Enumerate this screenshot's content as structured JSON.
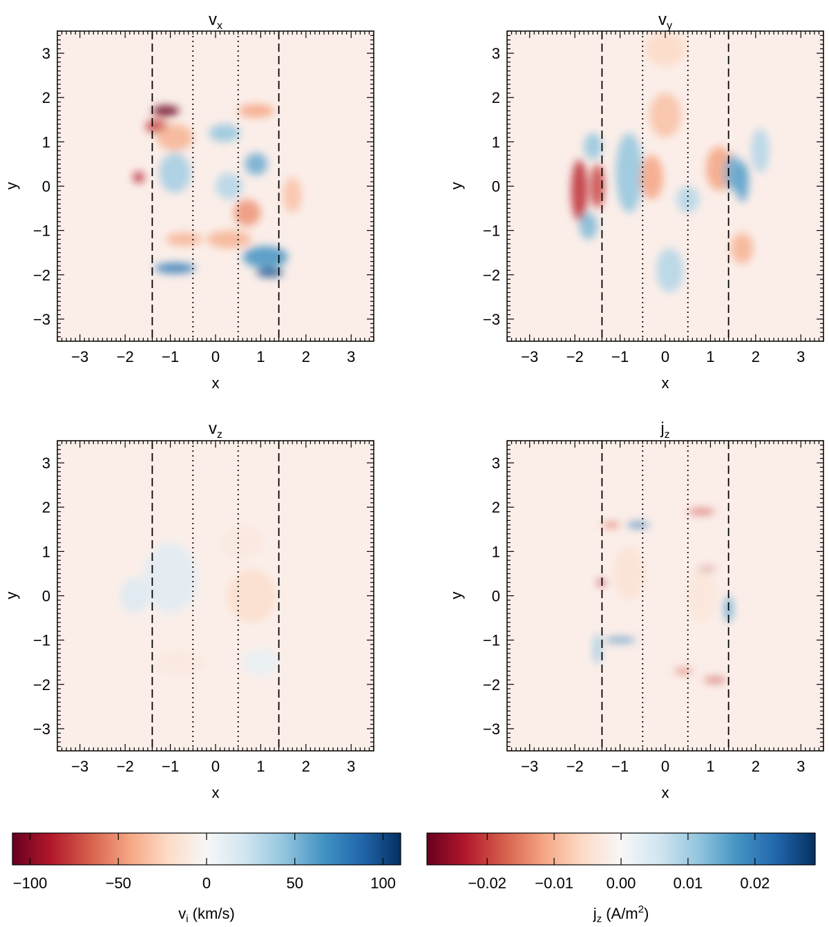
{
  "figure": {
    "x_axis_label": "x",
    "y_axis_label": "y",
    "tick_values": [
      -3,
      -2,
      -1,
      0,
      1,
      2,
      3
    ],
    "tick_labels": [
      "−3",
      "−2",
      "−1",
      "0",
      "1",
      "2",
      "3"
    ],
    "dashed_lines_x": [
      -1.4,
      1.4
    ],
    "dotted_lines_x": [
      -0.5,
      0.5
    ]
  },
  "chart_data": [
    {
      "type": "heatmap",
      "title_main": "v",
      "title_sub": "x",
      "xlabel": "x",
      "ylabel": "y",
      "xlim": [
        -3.5,
        3.5
      ],
      "ylim": [
        -3.5,
        3.5
      ],
      "colorbar": "velocity",
      "features": [
        {
          "x": -1.1,
          "y": 1.7,
          "sx": 0.3,
          "sy": 0.12,
          "v": -1.0
        },
        {
          "x": -1.3,
          "y": 1.35,
          "sx": 0.25,
          "sy": 0.15,
          "v": -0.7
        },
        {
          "x": -0.9,
          "y": 1.1,
          "sx": 0.4,
          "sy": 0.3,
          "v": -0.35
        },
        {
          "x": -1.7,
          "y": 0.2,
          "sx": 0.12,
          "sy": 0.12,
          "v": -0.8
        },
        {
          "x": 0.9,
          "y": 1.7,
          "sx": 0.4,
          "sy": 0.15,
          "v": -0.4
        },
        {
          "x": 0.7,
          "y": -0.6,
          "sx": 0.3,
          "sy": 0.3,
          "v": -0.45
        },
        {
          "x": 1.7,
          "y": -0.2,
          "sx": 0.2,
          "sy": 0.4,
          "v": -0.3
        },
        {
          "x": -0.9,
          "y": 0.3,
          "sx": 0.35,
          "sy": 0.45,
          "v": 0.35
        },
        {
          "x": 0.2,
          "y": 1.2,
          "sx": 0.35,
          "sy": 0.2,
          "v": 0.4
        },
        {
          "x": 0.9,
          "y": 0.5,
          "sx": 0.25,
          "sy": 0.25,
          "v": 0.5
        },
        {
          "x": 0.3,
          "y": 0.0,
          "sx": 0.3,
          "sy": 0.3,
          "v": 0.3
        },
        {
          "x": -0.9,
          "y": -1.85,
          "sx": 0.45,
          "sy": 0.12,
          "v": 0.7
        },
        {
          "x": 1.1,
          "y": -1.6,
          "sx": 0.5,
          "sy": 0.25,
          "v": 0.6
        },
        {
          "x": 1.2,
          "y": -1.95,
          "sx": 0.3,
          "sy": 0.1,
          "v": 0.9
        },
        {
          "x": 0.3,
          "y": -1.2,
          "sx": 0.5,
          "sy": 0.2,
          "v": -0.35
        },
        {
          "x": -0.7,
          "y": -1.2,
          "sx": 0.4,
          "sy": 0.15,
          "v": -0.35
        }
      ]
    },
    {
      "type": "heatmap",
      "title_main": "v",
      "title_sub": "y",
      "xlabel": "x",
      "ylabel": "y",
      "xlim": [
        -3.5,
        3.5
      ],
      "ylim": [
        -3.5,
        3.5
      ],
      "colorbar": "velocity",
      "features": [
        {
          "x": -1.9,
          "y": -0.1,
          "sx": 0.18,
          "sy": 0.7,
          "v": -0.75
        },
        {
          "x": -1.5,
          "y": 0.0,
          "sx": 0.15,
          "sy": 0.5,
          "v": -0.7
        },
        {
          "x": -1.6,
          "y": 0.9,
          "sx": 0.2,
          "sy": 0.3,
          "v": 0.4
        },
        {
          "x": -1.7,
          "y": -0.9,
          "sx": 0.2,
          "sy": 0.3,
          "v": 0.45
        },
        {
          "x": -0.8,
          "y": 0.3,
          "sx": 0.3,
          "sy": 0.9,
          "v": 0.4
        },
        {
          "x": -0.3,
          "y": 0.2,
          "sx": 0.25,
          "sy": 0.5,
          "v": -0.4
        },
        {
          "x": 0.0,
          "y": 1.6,
          "sx": 0.35,
          "sy": 0.5,
          "v": -0.3
        },
        {
          "x": 0.0,
          "y": 3.1,
          "sx": 0.45,
          "sy": 0.4,
          "v": -0.2
        },
        {
          "x": 0.1,
          "y": -1.9,
          "sx": 0.3,
          "sy": 0.5,
          "v": 0.3
        },
        {
          "x": 1.2,
          "y": 0.4,
          "sx": 0.3,
          "sy": 0.5,
          "v": -0.4
        },
        {
          "x": 1.5,
          "y": 0.3,
          "sx": 0.2,
          "sy": 0.4,
          "v": 0.5
        },
        {
          "x": 1.7,
          "y": 0.1,
          "sx": 0.15,
          "sy": 0.45,
          "v": 0.55
        },
        {
          "x": 2.1,
          "y": 0.8,
          "sx": 0.2,
          "sy": 0.5,
          "v": 0.3
        },
        {
          "x": 1.7,
          "y": -1.4,
          "sx": 0.25,
          "sy": 0.35,
          "v": -0.35
        },
        {
          "x": 0.5,
          "y": -0.3,
          "sx": 0.25,
          "sy": 0.3,
          "v": 0.3
        }
      ]
    },
    {
      "type": "heatmap",
      "title_main": "v",
      "title_sub": "z",
      "xlabel": "x",
      "ylabel": "y",
      "xlim": [
        -3.5,
        3.5
      ],
      "ylim": [
        -3.5,
        3.5
      ],
      "colorbar": "velocity",
      "features": [
        {
          "x": -1.0,
          "y": 0.4,
          "sx": 0.6,
          "sy": 0.8,
          "v": 0.12
        },
        {
          "x": -1.8,
          "y": 0.0,
          "sx": 0.3,
          "sy": 0.4,
          "v": 0.15
        },
        {
          "x": 0.8,
          "y": 0.0,
          "sx": 0.55,
          "sy": 0.6,
          "v": -0.18
        },
        {
          "x": 0.6,
          "y": 1.2,
          "sx": 0.5,
          "sy": 0.4,
          "v": -0.1
        },
        {
          "x": -0.8,
          "y": -1.5,
          "sx": 0.6,
          "sy": 0.3,
          "v": -0.1
        },
        {
          "x": 1.0,
          "y": -1.5,
          "sx": 0.4,
          "sy": 0.3,
          "v": 0.08
        }
      ]
    },
    {
      "type": "heatmap",
      "title_main": "j",
      "title_sub": "z",
      "xlabel": "x",
      "ylabel": "y",
      "xlim": [
        -3.5,
        3.5
      ],
      "ylim": [
        -3.5,
        3.5
      ],
      "colorbar": "current",
      "features": [
        {
          "x": -1.2,
          "y": 1.6,
          "sx": 0.2,
          "sy": 0.05,
          "v": -0.6
        },
        {
          "x": -0.6,
          "y": 1.6,
          "sx": 0.25,
          "sy": 0.06,
          "v": 0.7
        },
        {
          "x": 0.8,
          "y": 1.9,
          "sx": 0.3,
          "sy": 0.05,
          "v": -0.7
        },
        {
          "x": -1.4,
          "y": 0.3,
          "sx": 0.12,
          "sy": 0.05,
          "v": -0.8
        },
        {
          "x": 0.9,
          "y": 0.6,
          "sx": 0.2,
          "sy": 0.04,
          "v": -0.8
        },
        {
          "x": -1.0,
          "y": -1.0,
          "sx": 0.35,
          "sy": 0.05,
          "v": 0.7
        },
        {
          "x": 0.4,
          "y": -1.7,
          "sx": 0.2,
          "sy": 0.05,
          "v": -0.6
        },
        {
          "x": 1.1,
          "y": -1.9,
          "sx": 0.25,
          "sy": 0.05,
          "v": -0.7
        },
        {
          "x": 1.4,
          "y": -0.3,
          "sx": 0.1,
          "sy": 0.3,
          "v": 0.5
        },
        {
          "x": -1.5,
          "y": -1.2,
          "sx": 0.1,
          "sy": 0.35,
          "v": 0.35
        },
        {
          "x": -0.8,
          "y": 0.5,
          "sx": 0.35,
          "sy": 0.6,
          "v": -0.15
        },
        {
          "x": 0.8,
          "y": 0.0,
          "sx": 0.35,
          "sy": 0.6,
          "v": -0.12
        }
      ]
    }
  ],
  "colorbars": {
    "velocity": {
      "label_main": "v",
      "label_sub": "i",
      "label_units": " (km/s)",
      "range": [
        -110,
        110
      ],
      "ticks": [
        -100,
        -50,
        0,
        50,
        100
      ],
      "tick_labels": [
        "−100",
        "−50",
        "0",
        "50",
        "100"
      ]
    },
    "current": {
      "label_main": "j",
      "label_sub": "z",
      "label_units": " (A/m",
      "label_sup": "2",
      "label_close": ")",
      "range": [
        -0.029,
        0.029
      ],
      "ticks": [
        -0.02,
        -0.01,
        0.0,
        0.01,
        0.02
      ],
      "tick_labels": [
        "−0.02",
        "−0.01",
        "0.00",
        "0.01",
        "0.02"
      ]
    },
    "colors": [
      "#67001f",
      "#b2182b",
      "#d6604d",
      "#f4a582",
      "#fddbc7",
      "#f7f7f7",
      "#d1e5f0",
      "#92c5de",
      "#4393c3",
      "#2166ac",
      "#053061"
    ],
    "background": "#fbeee9"
  }
}
